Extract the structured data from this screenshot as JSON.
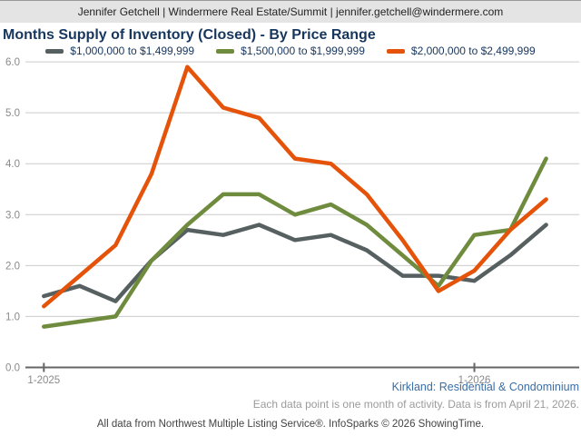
{
  "header": {
    "text": "Jennifer Getchell | Windermere Real Estate/Summit | jennifer.getchell@windermere.com"
  },
  "title": "Months Supply of Inventory (Closed) - By Price Range",
  "colors": {
    "header_bg": "#e4e4e4",
    "title_text": "#17365d",
    "legend_text": "#17365d",
    "series_gray": "#576060",
    "series_green": "#6f8c3e",
    "series_orange": "#e5530a",
    "gridline": "#cccccc",
    "axis": "#666666",
    "tick_label": "#8a8a8a",
    "subtitle_blue": "#3a6ea5",
    "note_gray": "#9b9b9b",
    "footer_text": "#444444"
  },
  "chart_data": {
    "type": "line",
    "title": "Months Supply of Inventory (Closed) - By Price Range",
    "x": [
      "1-2025",
      "2-2025",
      "3-2025",
      "4-2025",
      "5-2025",
      "6-2025",
      "7-2025",
      "8-2025",
      "9-2025",
      "10-2025",
      "11-2025",
      "12-2025",
      "1-2026",
      "2-2026",
      "3-2026"
    ],
    "series": [
      {
        "name": "$1,000,000 to $1,499,999",
        "color": "#576060",
        "values": [
          1.4,
          1.6,
          1.3,
          2.1,
          2.7,
          2.6,
          2.8,
          2.5,
          2.6,
          2.3,
          1.8,
          1.8,
          1.7,
          2.2,
          2.8
        ]
      },
      {
        "name": "$1,500,000 to $1,999,999",
        "color": "#6f8c3e",
        "values": [
          0.8,
          0.9,
          1.0,
          2.1,
          2.8,
          3.4,
          3.4,
          3.0,
          3.2,
          2.8,
          2.2,
          1.6,
          2.6,
          2.7,
          4.1
        ]
      },
      {
        "name": "$2,000,000 to $2,499,999",
        "color": "#e5530a",
        "values": [
          1.2,
          1.8,
          2.4,
          3.8,
          5.9,
          5.1,
          4.9,
          4.1,
          4.0,
          3.4,
          2.5,
          1.5,
          1.9,
          2.7,
          3.3
        ]
      }
    ],
    "ylabel": "",
    "xlabel": "",
    "ylim": [
      0,
      6
    ],
    "yticks": [
      {
        "value": 0,
        "label": "0.0"
      },
      {
        "value": 1,
        "label": "1.0"
      },
      {
        "value": 2,
        "label": "2.0"
      },
      {
        "value": 3,
        "label": "3.0"
      },
      {
        "value": 4,
        "label": "4.0"
      },
      {
        "value": 5,
        "label": "5.0"
      },
      {
        "value": 6,
        "label": "6.0"
      }
    ],
    "xtick_labels": [
      {
        "index": 0,
        "label": "1-2025"
      },
      {
        "index": 12,
        "label": "1-2026"
      }
    ],
    "grid": "horizontal",
    "legend_position": "top"
  },
  "footer": {
    "region": "Kirkland: Residential & Condominium",
    "note": "Each data point is one month of activity. Data is from April 21, 2026.",
    "attribution": "All data from Northwest Multiple Listing Service®. InfoSparks © 2026 ShowingTime."
  }
}
